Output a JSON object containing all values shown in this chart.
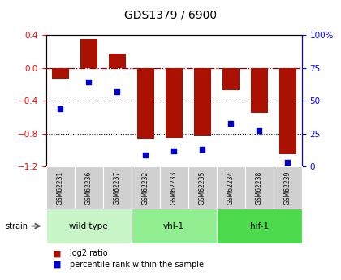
{
  "title": "GDS1379 / 6900",
  "samples": [
    "GSM62231",
    "GSM62236",
    "GSM62237",
    "GSM62232",
    "GSM62233",
    "GSM62235",
    "GSM62234",
    "GSM62238",
    "GSM62239"
  ],
  "log2_ratio": [
    -0.13,
    0.35,
    0.17,
    -0.86,
    -0.85,
    -0.82,
    -0.27,
    -0.55,
    -1.05
  ],
  "percentile_rank": [
    44,
    64,
    57,
    9,
    12,
    13,
    33,
    27,
    3
  ],
  "groups": [
    {
      "label": "wild type",
      "start": 0,
      "end": 3,
      "color": "#c8f5c8"
    },
    {
      "label": "vhl-1",
      "start": 3,
      "end": 6,
      "color": "#90ee90"
    },
    {
      "label": "hif-1",
      "start": 6,
      "end": 9,
      "color": "#4cda4c"
    }
  ],
  "ylim_left": [
    -1.2,
    0.4
  ],
  "ylim_right": [
    0,
    100
  ],
  "bar_color": "#aa1100",
  "dot_color": "#0000cc",
  "yticks_left": [
    0.4,
    0.0,
    -0.4,
    -0.8,
    -1.2
  ],
  "yticks_right": [
    100,
    75,
    50,
    25,
    0
  ],
  "hline_y": 0.0,
  "dotted_lines": [
    -0.4,
    -0.8
  ],
  "bar_width": 0.6,
  "legend_items": [
    "log2 ratio",
    "percentile rank within the sample"
  ],
  "strain_label": "strain",
  "gray_label_color": "#c8c8c8",
  "label_border_color": "#aaaaaa"
}
